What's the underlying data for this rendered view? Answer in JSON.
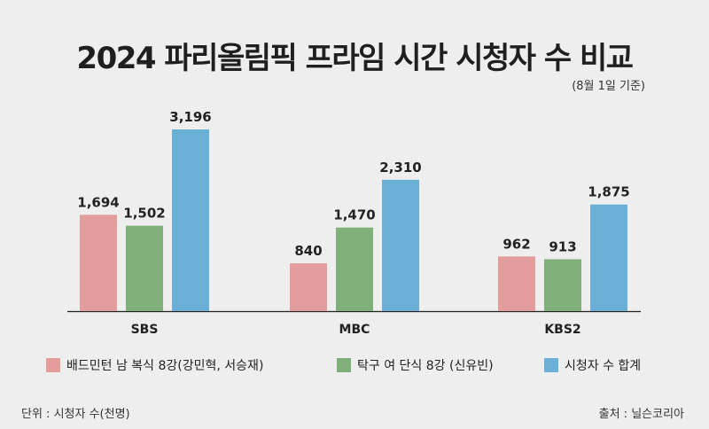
{
  "title": "2024 파리올림픽 프라임 시간 시청자 수 비교",
  "subtitle": "(8월 1일 기준)",
  "footer": {
    "unit": "단위 : 시청자 수(천명)",
    "source": "출처 : 닐슨코리아"
  },
  "colors": {
    "series1": "#e39d9c",
    "series2": "#7fb07a",
    "series3": "#6aafd6",
    "baseline": "#222222"
  },
  "chart_data": {
    "type": "bar",
    "categories": [
      "SBS",
      "MBC",
      "KBS2"
    ],
    "series": [
      {
        "name": "배드민턴 남 복식 8강(강민혁, 서승재)",
        "values": [
          1694,
          840,
          962
        ],
        "labels": [
          "1,694",
          "840",
          "962"
        ]
      },
      {
        "name": "탁구 여 단식 8강 (신유빈)",
        "values": [
          1502,
          1470,
          913
        ],
        "labels": [
          "1,502",
          "1,470",
          "913"
        ]
      },
      {
        "name": "시청자 수 합계",
        "values": [
          3196,
          2310,
          1875
        ],
        "labels": [
          "3,196",
          "2,310",
          "1,875"
        ]
      }
    ],
    "ylim": [
      0,
      3196
    ],
    "grid": false,
    "legend_position": "bottom"
  }
}
